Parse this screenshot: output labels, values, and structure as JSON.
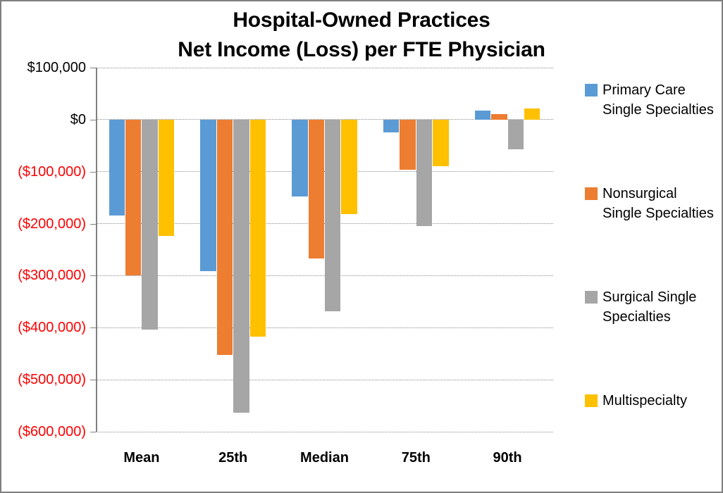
{
  "title": {
    "line1": "Hospital-Owned Practices",
    "line2": "Net Income (Loss) per FTE Physician"
  },
  "chart_data": {
    "type": "bar",
    "title": "Hospital-Owned Practices Net Income (Loss) per FTE Physician",
    "categories": [
      "Mean",
      "25th",
      "Median",
      "75th",
      "90th"
    ],
    "series": [
      {
        "name": "Primary Care Single Specialties",
        "color": "#5B9BD5",
        "pattern": false,
        "values": [
          -185000,
          -291000,
          -148000,
          -25000,
          17000
        ]
      },
      {
        "name": "Nonsurgical Single Specialties",
        "color": "#ED7D31",
        "pattern": false,
        "values": [
          -300000,
          -453000,
          -267000,
          -97000,
          10000
        ]
      },
      {
        "name": "Surgical Single Specialties",
        "color": "#A6A6A6",
        "pattern": true,
        "values": [
          -404000,
          -563000,
          -368000,
          -204000,
          -57000
        ]
      },
      {
        "name": "Multispecialty",
        "color": "#FFC000",
        "pattern": false,
        "values": [
          -223000,
          -417000,
          -182000,
          -89000,
          22000
        ]
      }
    ],
    "ylim": [
      -600000,
      100000
    ],
    "ytick_step": 100000,
    "yticks": [
      {
        "label": "$100,000",
        "value": 100000,
        "color": "#000000"
      },
      {
        "label": "$0",
        "value": 0,
        "color": "#000000"
      },
      {
        "label": "($100,000)",
        "value": -100000,
        "color": "#FF0000"
      },
      {
        "label": "($200,000)",
        "value": -200000,
        "color": "#FF0000"
      },
      {
        "label": "($300,000)",
        "value": -300000,
        "color": "#FF0000"
      },
      {
        "label": "($400,000)",
        "value": -400000,
        "color": "#FF0000"
      },
      {
        "label": "($500,000)",
        "value": -500000,
        "color": "#FF0000"
      },
      {
        "label": "($600,000)",
        "value": -600000,
        "color": "#FF0000"
      }
    ],
    "grid": true,
    "legend_position": "right",
    "xlabel": "",
    "ylabel": ""
  },
  "colors": {
    "axis": "#808080",
    "gridline": "#8C8C8C",
    "frame_border": "#7F7F7F",
    "negative_label": "#FF0000",
    "title_text": "#000000"
  }
}
